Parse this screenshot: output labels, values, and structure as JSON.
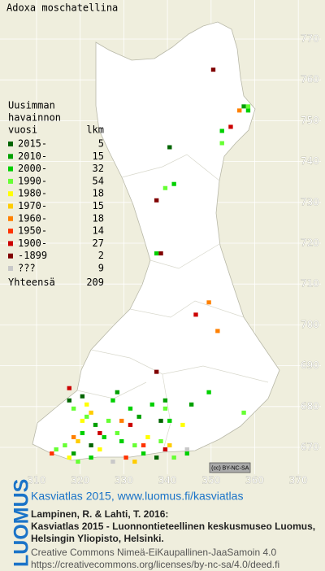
{
  "title": "Adoxa moschatellina",
  "legend": {
    "heading": [
      "Uusimman",
      "havainnon"
    ],
    "year_header": "vuosi",
    "count_header": "lkm",
    "entries": [
      {
        "label": "2015-",
        "count": 5,
        "color": "#006400",
        "squares": [
          [
            340,
            743
          ],
          [
            320,
            682
          ],
          [
            317,
            681
          ],
          [
            338,
            676
          ],
          [
            337,
            667
          ],
          [
            322,
            670
          ]
        ]
      },
      {
        "label": "2010-",
        "count": 15,
        "color": "#00a000",
        "squares": [
          [
            357,
            753
          ],
          [
            328,
            683
          ],
          [
            339,
            681
          ],
          [
            323,
            675
          ],
          [
            333,
            677
          ],
          [
            345,
            680
          ],
          [
            318,
            668
          ]
        ]
      },
      {
        "label": "2000-",
        "count": 32,
        "color": "#00d000",
        "squares": [
          [
            358,
            752
          ],
          [
            352,
            747
          ],
          [
            341,
            734
          ],
          [
            337,
            717
          ],
          [
            349,
            683
          ],
          [
            327,
            681
          ],
          [
            331,
            679
          ],
          [
            336,
            680
          ],
          [
            340,
            676
          ],
          [
            320,
            673
          ],
          [
            325,
            672
          ],
          [
            329,
            671
          ],
          [
            334,
            668
          ],
          [
            344,
            668
          ],
          [
            322,
            667
          ]
        ]
      },
      {
        "label": "1990-",
        "count": 54,
        "color": "#66ff33",
        "squares": [
          [
            358,
            753
          ],
          [
            352,
            744
          ],
          [
            339,
            733
          ],
          [
            357,
            678
          ],
          [
            318,
            679
          ],
          [
            321,
            677
          ],
          [
            326,
            676
          ],
          [
            328,
            673
          ],
          [
            339,
            679
          ],
          [
            338,
            671
          ],
          [
            332,
            670
          ],
          [
            316,
            670
          ],
          [
            314,
            669
          ],
          [
            341,
            667
          ],
          [
            319,
            666
          ]
        ]
      },
      {
        "label": "1980-",
        "count": 18,
        "color": "#ffff00",
        "squares": [
          [
            321,
            680
          ],
          [
            320,
            676
          ],
          [
            343,
            675
          ],
          [
            324,
            669
          ],
          [
            317,
            667
          ],
          [
            335,
            672
          ]
        ]
      },
      {
        "label": "1970-",
        "count": 15,
        "color": "#ffcc00",
        "squares": [
          [
            322,
            678
          ],
          [
            319,
            671
          ],
          [
            332,
            666
          ],
          [
            340,
            670
          ]
        ]
      },
      {
        "label": "1960-",
        "count": 18,
        "color": "#ff8000",
        "squares": [
          [
            356,
            752
          ],
          [
            349,
            705
          ],
          [
            351,
            698
          ],
          [
            318,
            672
          ],
          [
            329,
            676
          ]
        ]
      },
      {
        "label": "1950-",
        "count": 14,
        "color": "#ff3300",
        "squares": [
          [
            330,
            667
          ],
          [
            334,
            670
          ],
          [
            313,
            668
          ]
        ]
      },
      {
        "label": "1900-",
        "count": 27,
        "color": "#cc0000",
        "squares": [
          [
            354,
            748
          ],
          [
            346,
            702
          ],
          [
            317,
            684
          ],
          [
            324,
            673
          ],
          [
            339,
            669
          ],
          [
            331,
            675
          ]
        ]
      },
      {
        "label": "-1899",
        "count": 2,
        "color": "#800000",
        "squares": [
          [
            350,
            762
          ],
          [
            337,
            730
          ],
          [
            338,
            717
          ],
          [
            337,
            688
          ]
        ]
      },
      {
        "label": "???",
        "count": 9,
        "color": "#c8c8c8",
        "squares": [
          [
            344,
            669
          ],
          [
            327,
            666
          ]
        ]
      }
    ],
    "total_label": "Yhteensä",
    "total": 209
  },
  "xticks": [
    310,
    320,
    330,
    340,
    350,
    360,
    370
  ],
  "yticks": [
    670,
    680,
    690,
    700,
    710,
    720,
    730,
    740,
    750,
    760,
    770
  ],
  "license_badge": [
    "(cc)",
    "BY-NC-SA"
  ],
  "footer": {
    "logo": "LUOMUS",
    "link": "Kasviatlas 2015, www.luomus.fi/kasviatlas",
    "citation": [
      "Lampinen, R. & Lahti, T. 2016:",
      "Kasviatlas 2015 - Luonnontieteellinen keskusmuseo Luomus,",
      "Helsingin Yliopisto, Helsinki."
    ],
    "license": [
      "Creative Commons Nimeä-EiKaupallinen-JaaSamoin 4.0",
      "https://creativecommons.org/licenses/by-nc-sa/4.0/deed.fi"
    ]
  }
}
